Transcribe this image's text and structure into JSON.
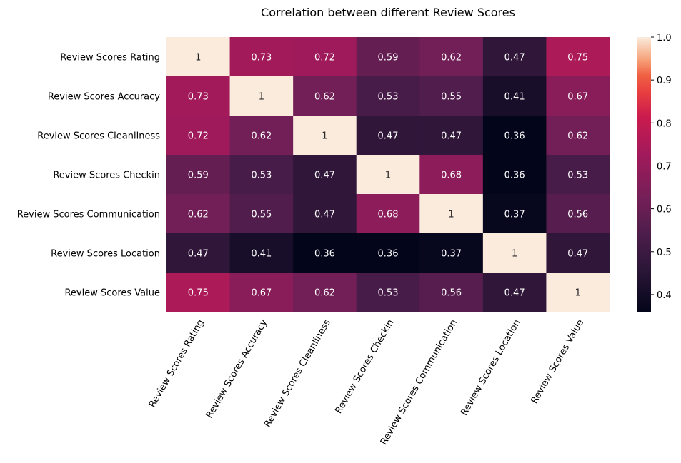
{
  "chart_data": {
    "type": "heatmap",
    "title": "Correlation between different Review Scores",
    "xlabel": "",
    "ylabel": "",
    "rows": [
      "Review Scores Rating",
      "Review Scores Accuracy",
      "Review Scores Cleanliness",
      "Review Scores Checkin",
      "Review Scores Communication",
      "Review Scores Location",
      "Review Scores Value"
    ],
    "columns": [
      "Review Scores Rating",
      "Review Scores Accuracy",
      "Review Scores Cleanliness",
      "Review Scores Checkin",
      "Review Scores Communication",
      "Review Scores Location",
      "Review Scores Value"
    ],
    "values": [
      [
        1,
        0.73,
        0.72,
        0.59,
        0.62,
        0.47,
        0.75
      ],
      [
        0.73,
        1,
        0.62,
        0.53,
        0.55,
        0.41,
        0.67
      ],
      [
        0.72,
        0.62,
        1,
        0.47,
        0.47,
        0.36,
        0.62
      ],
      [
        0.59,
        0.53,
        0.47,
        1,
        0.68,
        0.36,
        0.53
      ],
      [
        0.62,
        0.55,
        0.47,
        0.68,
        1,
        0.37,
        0.56
      ],
      [
        0.47,
        0.41,
        0.36,
        0.36,
        0.37,
        1,
        0.47
      ],
      [
        0.75,
        0.67,
        0.62,
        0.53,
        0.56,
        0.47,
        1
      ]
    ],
    "colorscale": "rocket",
    "colorbar": {
      "range": [
        0.36,
        1.0
      ],
      "ticks": [
        "0.4",
        "0.5",
        "0.6",
        "0.7",
        "0.8",
        "0.9",
        "1.0"
      ]
    },
    "annotations": true,
    "grid": false
  }
}
